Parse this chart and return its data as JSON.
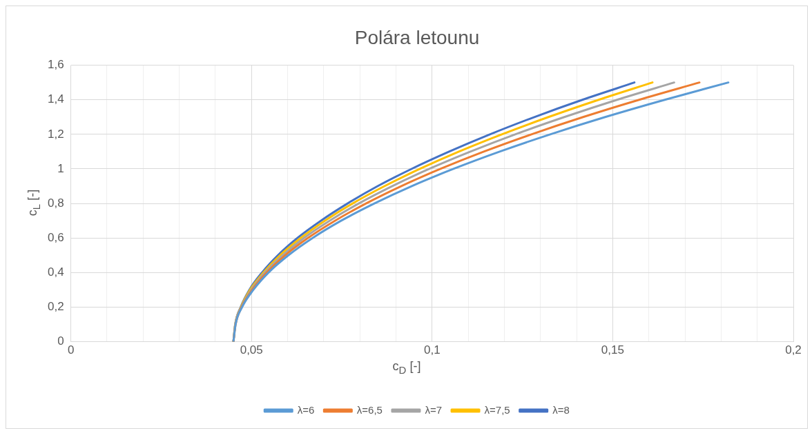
{
  "chart_data": {
    "type": "line",
    "title": "Polára letounu",
    "xlabel": "c$_{D}$ [-]",
    "ylabel": "c$_{L}$ [-]",
    "xlim": [
      0,
      0.2
    ],
    "ylim": [
      0,
      1.6
    ],
    "xticks": [
      0,
      {
        "value": 0.01,
        "label": null
      },
      {
        "value": 0.02,
        "label": null
      },
      {
        "value": 0.03,
        "label": null
      },
      {
        "value": 0.04,
        "label": null
      },
      {
        "value": 0.05,
        "label": "0,05"
      },
      {
        "value": 0.06,
        "label": null
      },
      {
        "value": 0.07,
        "label": null
      },
      {
        "value": 0.08,
        "label": null
      },
      {
        "value": 0.09,
        "label": null
      },
      {
        "value": 0.1,
        "label": "0,1"
      },
      {
        "value": 0.11,
        "label": null
      },
      {
        "value": 0.12,
        "label": null
      },
      {
        "value": 0.13,
        "label": null
      },
      {
        "value": 0.14,
        "label": null
      },
      {
        "value": 0.15,
        "label": "0,15"
      },
      {
        "value": 0.16,
        "label": null
      },
      {
        "value": 0.17,
        "label": null
      },
      {
        "value": 0.18,
        "label": null
      },
      {
        "value": 0.19,
        "label": null
      },
      {
        "value": 0.2,
        "label": "0,2"
      }
    ],
    "yticks": [
      0,
      {
        "value": 0.2,
        "label": "0,2"
      },
      {
        "value": 0.4,
        "label": "0,4"
      },
      {
        "value": 0.6,
        "label": "0,6"
      },
      {
        "value": 0.8,
        "label": "0,8"
      },
      1,
      {
        "value": 1.2,
        "label": "1,2"
      },
      {
        "value": 1.4,
        "label": "1,4"
      },
      {
        "value": 1.6,
        "label": "1,6"
      }
    ],
    "grid": true,
    "legend": "bottom",
    "marker": "none",
    "line_style": "solid",
    "series": [
      {
        "name": "λ=6",
        "color": "#5b9bd5",
        "x": [
          0.045,
          0.0456,
          0.0474,
          0.0505,
          0.0547,
          0.0602,
          0.0669,
          0.0748,
          0.084,
          0.0943,
          0.1059,
          0.1187,
          0.1327,
          0.1479,
          0.1644,
          0.182
        ],
        "values": [
          0,
          0.1,
          0.2,
          0.3,
          0.4,
          0.5,
          0.6,
          0.7,
          0.8,
          0.9,
          1,
          1.1,
          1.2,
          1.3,
          1.4,
          1.5
        ]
      },
      {
        "name": "λ=6,5",
        "color": "#ed7d31",
        "x": [
          0.045,
          0.0456,
          0.0473,
          0.0502,
          0.0542,
          0.0593,
          0.0656,
          0.0731,
          0.0817,
          0.0914,
          0.1023,
          0.1143,
          0.1275,
          0.1418,
          0.1573,
          0.174
        ],
        "values": [
          0,
          0.1,
          0.2,
          0.3,
          0.4,
          0.5,
          0.6,
          0.7,
          0.8,
          0.9,
          1,
          1.1,
          1.2,
          1.3,
          1.4,
          1.5
        ]
      },
      {
        "name": "λ=7",
        "color": "#a5a5a5",
        "x": [
          0.045,
          0.0455,
          0.0472,
          0.0499,
          0.0537,
          0.0586,
          0.0645,
          0.0716,
          0.0797,
          0.0889,
          0.0992,
          0.1106,
          0.123,
          0.1366,
          0.1512,
          0.167
        ],
        "values": [
          0,
          0.1,
          0.2,
          0.3,
          0.4,
          0.5,
          0.6,
          0.7,
          0.8,
          0.9,
          1,
          1.1,
          1.2,
          1.3,
          1.4,
          1.5
        ]
      },
      {
        "name": "λ=7,5",
        "color": "#ffc000",
        "x": [
          0.045,
          0.0455,
          0.0471,
          0.0496,
          0.0533,
          0.0579,
          0.0636,
          0.0703,
          0.078,
          0.0868,
          0.0966,
          0.1074,
          0.1193,
          0.1322,
          0.1461,
          0.161
        ],
        "values": [
          0,
          0.1,
          0.2,
          0.3,
          0.4,
          0.5,
          0.6,
          0.7,
          0.8,
          0.9,
          1,
          1.1,
          1.2,
          1.3,
          1.4,
          1.5
        ]
      },
      {
        "name": "λ=8",
        "color": "#4472c4",
        "x": [
          0.045,
          0.0455,
          0.047,
          0.0494,
          0.0529,
          0.0573,
          0.0627,
          0.0692,
          0.0766,
          0.0849,
          0.0943,
          0.1047,
          0.116,
          0.1283,
          0.1416,
          0.156
        ],
        "values": [
          0,
          0.1,
          0.2,
          0.3,
          0.4,
          0.5,
          0.6,
          0.7,
          0.8,
          0.9,
          1,
          1.1,
          1.2,
          1.3,
          1.4,
          1.5
        ]
      }
    ]
  }
}
